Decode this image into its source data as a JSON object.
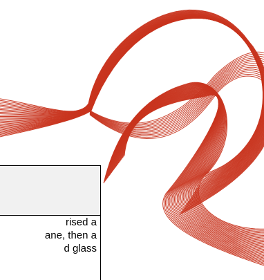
{
  "card": {
    "title": "",
    "lines": [
      "rised a",
      "ane, then a",
      "d glass"
    ]
  },
  "art": {
    "name": "flowing-line-wave",
    "color": "#c8341e"
  },
  "colors": {
    "border": "#000000",
    "header_bg": "#f1f1f1",
    "text": "#000000"
  }
}
